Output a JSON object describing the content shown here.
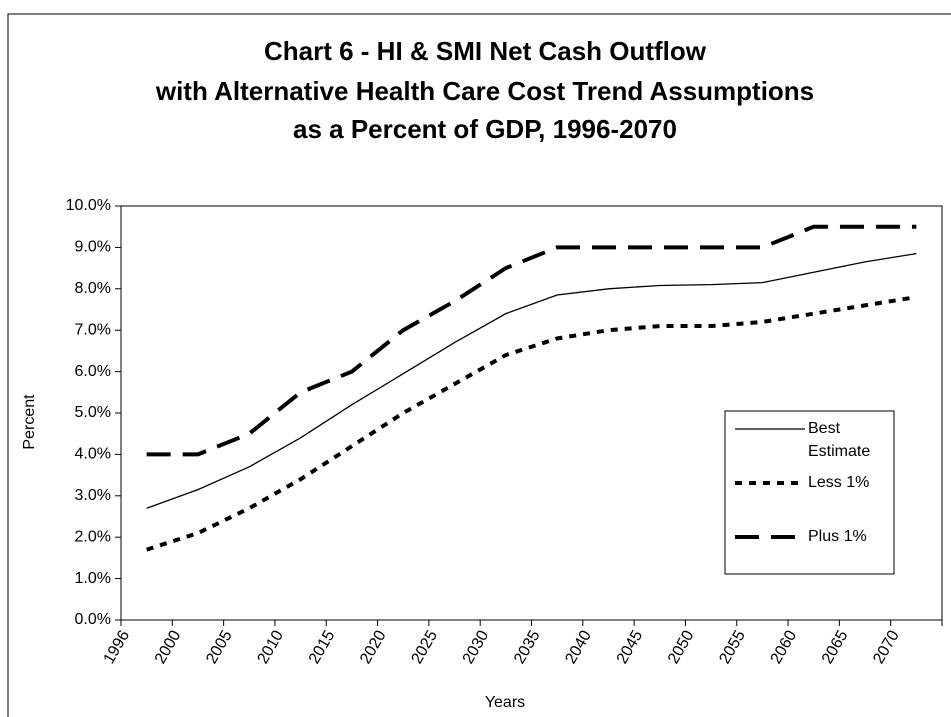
{
  "chart_data": {
    "type": "line",
    "title": [
      "Chart 6 - HI & SMI Net Cash Outflow",
      "with Alternative Health Care Cost Trend Assumptions",
      "as a Percent of GDP, 1996-2070"
    ],
    "x_label": "Years",
    "y_label": "Percent",
    "categories": [
      "1996",
      "2000",
      "2005",
      "2010",
      "2015",
      "2020",
      "2025",
      "2030",
      "2035",
      "2040",
      "2045",
      "2050",
      "2055",
      "2060",
      "2065",
      "2070"
    ],
    "series": [
      {
        "name": "Best Estimate",
        "color": "#000000",
        "style": "solid",
        "values": [
          2.7,
          3.15,
          3.7,
          4.4,
          5.2,
          5.95,
          6.7,
          7.4,
          7.85,
          8.0,
          8.08,
          8.1,
          8.15,
          8.4,
          8.65,
          8.85
        ]
      },
      {
        "name": "Less 1%",
        "color": "#000000",
        "style": "dotted",
        "values": [
          1.7,
          2.1,
          2.7,
          3.4,
          4.2,
          5.0,
          5.7,
          6.4,
          6.8,
          7.0,
          7.1,
          7.1,
          7.2,
          7.4,
          7.6,
          7.8
        ]
      },
      {
        "name": "Plus 1%",
        "color": "#000000",
        "style": "dashed",
        "values": [
          4.0,
          4.0,
          4.5,
          5.5,
          6.0,
          7.0,
          7.7,
          8.5,
          9.0,
          9.0,
          9.0,
          9.0,
          9.0,
          9.5,
          9.5,
          9.5
        ]
      }
    ],
    "ylim": [
      0,
      10
    ],
    "yticks": [
      {
        "value": 0,
        "label": "0.0%"
      },
      {
        "value": 1,
        "label": "1.0%"
      },
      {
        "value": 2,
        "label": "2.0%"
      },
      {
        "value": 3,
        "label": "3.0%"
      },
      {
        "value": 4,
        "label": "4.0%"
      },
      {
        "value": 5,
        "label": "5.0%"
      },
      {
        "value": 6,
        "label": "6.0%"
      },
      {
        "value": 7,
        "label": "7.0%"
      },
      {
        "value": 8,
        "label": "8.0%"
      },
      {
        "value": 9,
        "label": "9.0%"
      },
      {
        "value": 10,
        "label": "10.0%"
      }
    ],
    "grid": false,
    "legend": "right"
  }
}
